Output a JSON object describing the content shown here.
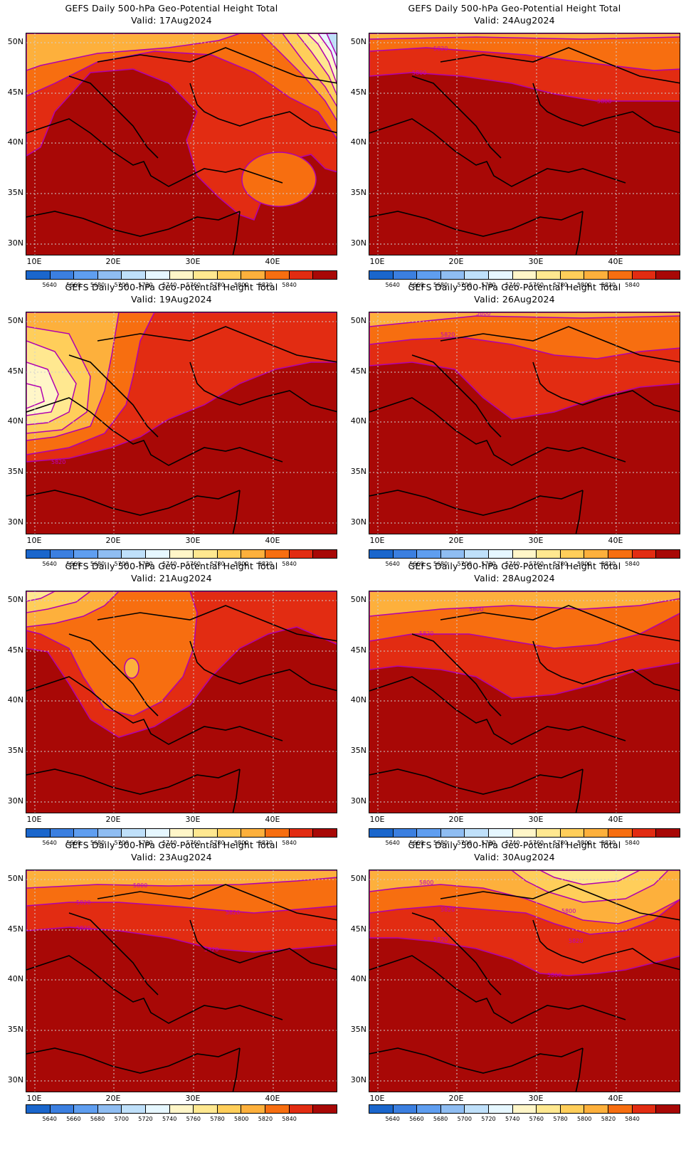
{
  "colorbar": {
    "colors": [
      "#1a66cc",
      "#3b7fe0",
      "#5f9ef0",
      "#8fbdf2",
      "#bfe0fa",
      "#e6f7ff",
      "#fff6c8",
      "#ffe890",
      "#ffce5a",
      "#fdb03c",
      "#f76e10",
      "#e22c12",
      "#a80806"
    ],
    "labels": [
      "5640",
      "5660",
      "5680",
      "5700",
      "5720",
      "5740",
      "5760",
      "5780",
      "5800",
      "5820",
      "5840"
    ]
  },
  "axes": {
    "x_ticks": [
      "10E",
      "20E",
      "30E",
      "40E"
    ],
    "y_ticks": [
      "50N",
      "45N",
      "40N",
      "35N",
      "30N"
    ]
  },
  "panels": [
    {
      "title": "GEFS Daily 500-hPa Geo-Potential Height Total",
      "valid": "Valid: 17Aug2024"
    },
    {
      "title": "GEFS Daily 500-hPa Geo-Potential Height Total",
      "valid": "Valid: 24Aug2024"
    },
    {
      "title": "GEFS Daily 500-hPa Geo-Potential Height Total",
      "valid": "Valid: 19Aug2024"
    },
    {
      "title": "GEFS Daily 500-hPa Geo-Potential Height Total",
      "valid": "Valid: 26Aug2024"
    },
    {
      "title": "GEFS Daily 500-hPa Geo-Potential Height Total",
      "valid": "Valid: 21Aug2024"
    },
    {
      "title": "GEFS Daily 500-hPa Geo-Potential Height Total",
      "valid": "Valid: 28Aug2024"
    },
    {
      "title": "GEFS Daily 500-hPa Geo-Potential Height Total",
      "valid": "Valid: 23Aug2024"
    },
    {
      "title": "GEFS Daily 500-hPa Geo-Potential Height Total",
      "valid": "Valid: 30Aug2024"
    }
  ],
  "contour_labels": {
    "p24": [
      "5820",
      "5800",
      "5800"
    ],
    "p19": [
      "5820"
    ],
    "p26": [
      "5800",
      "5820"
    ],
    "p28": [
      "5800",
      "5820"
    ],
    "p23": [
      "5800",
      "5820",
      "5820",
      "5820",
      "5820"
    ],
    "p30": [
      "5800",
      "5800",
      "5820",
      "5820",
      "5820",
      "5800"
    ]
  }
}
